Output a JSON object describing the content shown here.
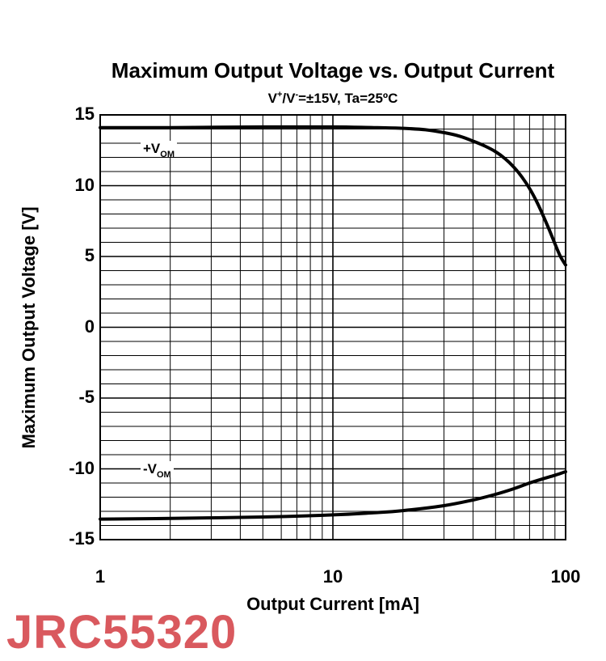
{
  "chart_data": {
    "type": "line",
    "title": "Maximum Output Voltage vs. Output Current",
    "subtitle": {
      "v_plus_base": "V",
      "v_plus_sup": "+",
      "sep": "/V",
      "v_minus_sup": "-",
      "rest": "=±15V, Ta=25ºC"
    },
    "xlabel": "Output Current [mA]",
    "ylabel": "Maximum Output Voltage [V]",
    "xscale": "log",
    "xlim": [
      1,
      100
    ],
    "ylim": [
      -15,
      15
    ],
    "xticks": [
      1,
      10,
      100
    ],
    "xtick_labels": [
      "1",
      "10",
      "100"
    ],
    "yticks": [
      15,
      10,
      5,
      0,
      -5,
      -10,
      -15
    ],
    "ytick_labels": [
      "15",
      "10",
      "5",
      "0",
      "-5",
      "-10",
      "-15"
    ],
    "grid": true,
    "series": [
      {
        "name": "+VOM",
        "label_base": "+V",
        "label_sub": "OM",
        "x": [
          1,
          2,
          5,
          10,
          15,
          20,
          25,
          30,
          35,
          40,
          45,
          50,
          55,
          60,
          65,
          70,
          75,
          80,
          85,
          90,
          95,
          100
        ],
        "y": [
          14.1,
          14.1,
          14.15,
          14.15,
          14.1,
          14.05,
          13.95,
          13.75,
          13.5,
          13.15,
          12.8,
          12.4,
          11.9,
          11.3,
          10.6,
          9.8,
          8.9,
          7.9,
          6.9,
          5.9,
          5.0,
          4.4
        ]
      },
      {
        "name": "-VOM",
        "label_base": "-V",
        "label_sub": "OM",
        "x": [
          1,
          2,
          5,
          10,
          15,
          20,
          30,
          40,
          50,
          60,
          70,
          80,
          90,
          100
        ],
        "y": [
          -13.55,
          -13.5,
          -13.4,
          -13.25,
          -13.1,
          -12.95,
          -12.6,
          -12.2,
          -11.8,
          -11.4,
          -11.0,
          -10.7,
          -10.45,
          -10.2
        ]
      }
    ],
    "colors": {
      "line": "#000000",
      "grid": "#000000",
      "watermark": "#d9595e"
    }
  },
  "watermark": "JRC55320"
}
